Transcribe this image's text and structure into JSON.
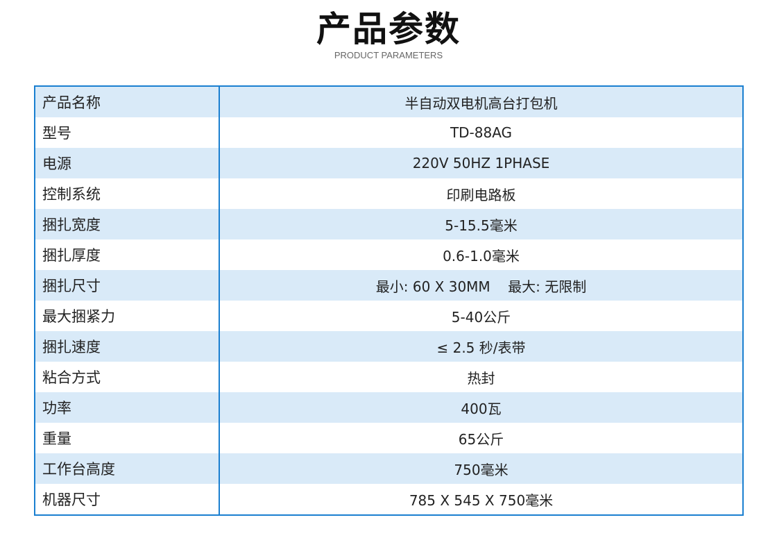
{
  "header": {
    "title": "产品参数",
    "subtitle": "PRODUCT PARAMETERS"
  },
  "colors": {
    "border": "#1a7fd0",
    "stripe": "#d9eaf8"
  },
  "rows": [
    {
      "label": "产品名称",
      "value": "半自动双电机高台打包机"
    },
    {
      "label": "型号",
      "value": "TD-88AG"
    },
    {
      "label": "电源",
      "value": "220V 50HZ 1PHASE"
    },
    {
      "label": "控制系统",
      "value": "印刷电路板"
    },
    {
      "label": "捆扎宽度",
      "value": "5-15.5毫米"
    },
    {
      "label": "捆扎厚度",
      "value": "0.6-1.0毫米"
    },
    {
      "label": "捆扎尺寸",
      "value": "最小: 60 X 30MM    最大: 无限制"
    },
    {
      "label": "最大捆紧力",
      "value": "5-40公斤"
    },
    {
      "label": "捆扎速度",
      "value": "≤ 2.5 秒/表带"
    },
    {
      "label": "粘合方式",
      "value": "热封"
    },
    {
      "label": "功率",
      "value": "400瓦"
    },
    {
      "label": "重量",
      "value": "65公斤"
    },
    {
      "label": "工作台高度",
      "value": "750毫米"
    },
    {
      "label": "机器尺寸",
      "value": "785 X 545 X 750毫米"
    }
  ]
}
